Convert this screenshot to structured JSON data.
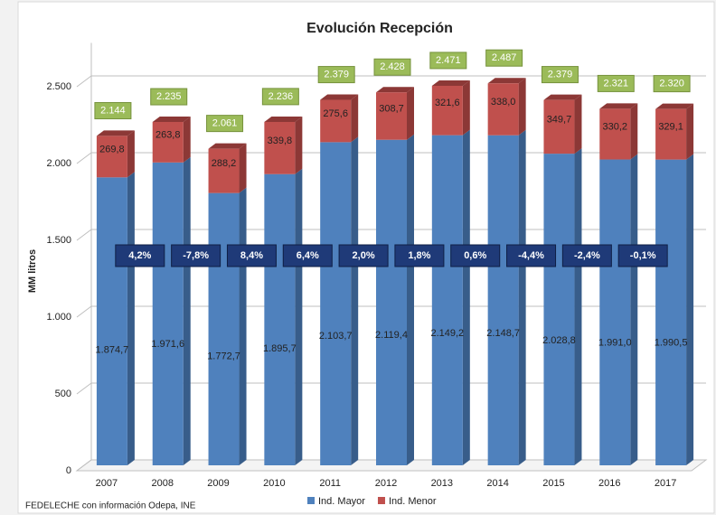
{
  "chart_data": {
    "type": "bar",
    "stacked": true,
    "title": "Evolución Recepción",
    "ylabel": "MM litros",
    "source": "FEDELECHE con información Odepa, INE",
    "categories": [
      "2007",
      "2008",
      "2009",
      "2010",
      "2011",
      "2012",
      "2013",
      "2014",
      "2015",
      "2016",
      "2017"
    ],
    "series": [
      {
        "name": "Ind. Mayor",
        "color": "#4f81bd",
        "side_color": "#385d8a",
        "values": [
          1874.7,
          1971.6,
          1772.7,
          1895.7,
          2103.7,
          2119.4,
          2149.2,
          2148.7,
          2028.8,
          1991.0,
          1990.5
        ],
        "value_labels": [
          "1.874,7",
          "1.971,6",
          "1.772,7",
          "1.895,7",
          "2.103,7",
          "2.119,4",
          "2.149,2",
          "2.148,7",
          "2.028,8",
          "1.991,0",
          "1.990,5"
        ]
      },
      {
        "name": "Ind. Menor",
        "color": "#c0504d",
        "side_color": "#8c3836",
        "values": [
          269.8,
          263.8,
          288.2,
          339.8,
          275.6,
          308.7,
          321.6,
          338.0,
          349.7,
          330.2,
          329.1
        ],
        "value_labels": [
          "269,8",
          "263,8",
          "288,2",
          "339,8",
          "275,6",
          "308,7",
          "321,6",
          "338,0",
          "349,7",
          "330,2",
          "329,1"
        ]
      }
    ],
    "totals": {
      "values": [
        2144,
        2235,
        2061,
        2236,
        2379,
        2428,
        2471,
        2487,
        2379,
        2321,
        2320
      ],
      "value_labels": [
        "2.144",
        "2.235",
        "2.061",
        "2.236",
        "2.379",
        "2.428",
        "2.471",
        "2.487",
        "2.379",
        "2.321",
        "2.320"
      ]
    },
    "growth": {
      "values": [
        4.2,
        -7.8,
        8.4,
        6.4,
        2.0,
        1.8,
        0.6,
        -4.4,
        -2.4,
        -0.1
      ],
      "value_labels": [
        "4,2%",
        "-7,8%",
        "8,4%",
        "6,4%",
        "2,0%",
        "1,8%",
        "0,6%",
        "-4,4%",
        "-2,4%",
        "-0,1%"
      ]
    },
    "ylim": [
      0,
      2750
    ],
    "yticks": [
      0,
      500,
      {
        "value": 1000,
        "label": "1.000"
      },
      {
        "value": 1500,
        "label": "1.500"
      },
      {
        "value": 2000,
        "label": "2.000"
      },
      {
        "value": 2500,
        "label": "2.500"
      }
    ],
    "grid": true,
    "legend": "bottom"
  }
}
